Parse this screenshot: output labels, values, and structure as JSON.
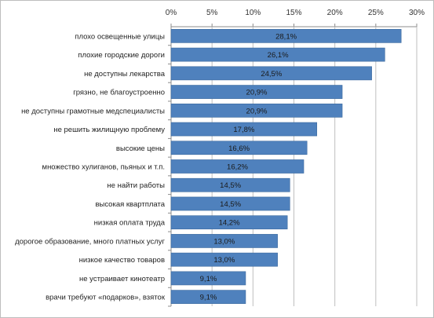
{
  "chart_data": {
    "type": "bar",
    "orientation": "horizontal",
    "x_axis_position": "top",
    "xlim": [
      0,
      30
    ],
    "x_ticks": [
      "0%",
      "5%",
      "10%",
      "15%",
      "20%",
      "25%",
      "30%"
    ],
    "grid": true,
    "bar_color": "#4f81bd",
    "categories": [
      "плохо освещенные улицы",
      "плохие городские дороги",
      "не доступны лекарства",
      "грязно, не благоустроенно",
      "не доступны грамотные медспециалисты",
      "не решить жилищную проблему",
      "высокие цены",
      "множество хулиганов, пьяных и т.п.",
      "не найти работы",
      "высокая квартплата",
      "низкая оплата труда",
      "дорогое образование, много платных услуг",
      "низкое качество товаров",
      "не устраивает кинотеатр",
      "врачи требуют «подарков», взяток"
    ],
    "values": [
      28.1,
      26.1,
      24.5,
      20.9,
      20.9,
      17.8,
      16.6,
      16.2,
      14.5,
      14.5,
      14.2,
      13.0,
      13.0,
      9.1,
      9.1
    ],
    "data_labels": [
      "28,1%",
      "26,1%",
      "24,5%",
      "20,9%",
      "20,9%",
      "17,8%",
      "16,6%",
      "16,2%",
      "14,5%",
      "14,5%",
      "14,2%",
      "13,0%",
      "13,0%",
      "9,1%",
      "9,1%"
    ]
  }
}
